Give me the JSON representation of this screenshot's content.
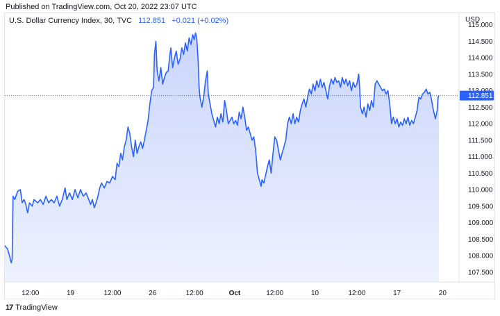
{
  "header": {
    "published": "Published on TradingView.com, Oct 20, 2022 23:07 UTC"
  },
  "legend": {
    "symbol": "U.S. Dollar Currency Index, 30, TVC",
    "last": "112.851",
    "change": "+0.021 (+0.02%)"
  },
  "footer": {
    "brand": "TradingView",
    "logo": "17"
  },
  "colors": {
    "line": "#2962ff",
    "area_top": "#c9d5fb",
    "area_bottom": "#eef2fe",
    "price_label_bg": "#2962ff"
  },
  "chart_data": {
    "type": "area",
    "currency_label": "USD",
    "current_price_label": "112.851",
    "current_price": 112.851,
    "ylim": [
      107.2,
      115.35
    ],
    "y_ticks": [
      "115.000",
      "114.500",
      "114.000",
      "113.500",
      "113.000",
      "112.500",
      "112.000",
      "111.500",
      "111.000",
      "110.500",
      "110.000",
      "109.500",
      "109.000",
      "108.500",
      "108.000",
      "107.500"
    ],
    "x_ticks": [
      {
        "label": "12:00",
        "x": 0.8,
        "bold": false
      },
      {
        "label": "19",
        "x": 3.0,
        "bold": false
      },
      {
        "label": "12:00",
        "x": 5.3,
        "bold": false
      },
      {
        "label": "26",
        "x": 7.5,
        "bold": false
      },
      {
        "label": "12:00",
        "x": 9.8,
        "bold": false
      },
      {
        "label": "Oct",
        "x": 12.0,
        "bold": true
      },
      {
        "label": "12:00",
        "x": 14.2,
        "bold": false
      },
      {
        "label": "10",
        "x": 16.4,
        "bold": false
      },
      {
        "label": "12:00",
        "x": 18.7,
        "bold": false
      },
      {
        "label": "17",
        "x": 20.9,
        "bold": false
      },
      {
        "label": "20",
        "x": 23.4,
        "bold": false
      }
    ],
    "xlim": [
      -0.6,
      24.3
    ],
    "series": [
      {
        "points": [
          [
            -0.6,
            108.3
          ],
          [
            -0.45,
            108.2
          ],
          [
            -0.35,
            108.0
          ],
          [
            -0.25,
            107.78
          ],
          [
            -0.2,
            107.9
          ],
          [
            -0.15,
            109.8
          ],
          [
            -0.05,
            109.7
          ],
          [
            0.1,
            109.95
          ],
          [
            0.25,
            110.0
          ],
          [
            0.35,
            109.6
          ],
          [
            0.45,
            109.7
          ],
          [
            0.55,
            109.55
          ],
          [
            0.65,
            109.3
          ],
          [
            0.75,
            109.6
          ],
          [
            0.9,
            109.5
          ],
          [
            1.0,
            109.7
          ],
          [
            1.2,
            109.6
          ],
          [
            1.35,
            109.7
          ],
          [
            1.5,
            109.55
          ],
          [
            1.65,
            109.8
          ],
          [
            1.8,
            109.6
          ],
          [
            1.95,
            109.7
          ],
          [
            2.1,
            109.6
          ],
          [
            2.25,
            109.8
          ],
          [
            2.4,
            109.5
          ],
          [
            2.55,
            109.7
          ],
          [
            2.7,
            110.05
          ],
          [
            2.8,
            109.7
          ],
          [
            2.95,
            109.9
          ],
          [
            3.1,
            109.7
          ],
          [
            3.25,
            110.0
          ],
          [
            3.4,
            109.75
          ],
          [
            3.55,
            110.0
          ],
          [
            3.7,
            109.8
          ],
          [
            3.85,
            109.9
          ],
          [
            4.0,
            109.7
          ],
          [
            4.1,
            109.55
          ],
          [
            4.2,
            109.7
          ],
          [
            4.3,
            109.45
          ],
          [
            4.4,
            109.6
          ],
          [
            4.5,
            109.8
          ],
          [
            4.6,
            110.05
          ],
          [
            4.7,
            110.2
          ],
          [
            4.85,
            110.05
          ],
          [
            5.0,
            110.25
          ],
          [
            5.15,
            110.2
          ],
          [
            5.3,
            110.4
          ],
          [
            5.45,
            110.3
          ],
          [
            5.55,
            110.8
          ],
          [
            5.65,
            110.7
          ],
          [
            5.75,
            111.1
          ],
          [
            5.85,
            110.9
          ],
          [
            5.95,
            111.3
          ],
          [
            6.05,
            111.5
          ],
          [
            6.15,
            111.9
          ],
          [
            6.25,
            111.7
          ],
          [
            6.35,
            111.3
          ],
          [
            6.45,
            111.0
          ],
          [
            6.55,
            111.5
          ],
          [
            6.65,
            111.1
          ],
          [
            6.75,
            111.3
          ],
          [
            6.85,
            111.45
          ],
          [
            6.95,
            111.25
          ],
          [
            7.05,
            111.5
          ],
          [
            7.15,
            111.8
          ],
          [
            7.25,
            112.1
          ],
          [
            7.35,
            112.6
          ],
          [
            7.45,
            113.0
          ],
          [
            7.55,
            113.1
          ],
          [
            7.6,
            114.1
          ],
          [
            7.68,
            114.5
          ],
          [
            7.75,
            113.6
          ],
          [
            7.85,
            113.3
          ],
          [
            7.95,
            113.7
          ],
          [
            8.05,
            113.2
          ],
          [
            8.15,
            113.4
          ],
          [
            8.25,
            113.55
          ],
          [
            8.35,
            113.6
          ],
          [
            8.45,
            114.1
          ],
          [
            8.5,
            114.3
          ],
          [
            8.6,
            113.7
          ],
          [
            8.7,
            114.0
          ],
          [
            8.8,
            114.2
          ],
          [
            8.9,
            113.8
          ],
          [
            9.0,
            113.95
          ],
          [
            9.1,
            114.3
          ],
          [
            9.2,
            114.1
          ],
          [
            9.3,
            114.45
          ],
          [
            9.4,
            114.2
          ],
          [
            9.5,
            114.6
          ],
          [
            9.6,
            114.4
          ],
          [
            9.7,
            114.7
          ],
          [
            9.78,
            114.55
          ],
          [
            9.85,
            114.75
          ],
          [
            9.92,
            114.6
          ],
          [
            10.0,
            113.9
          ],
          [
            10.05,
            113.1
          ],
          [
            10.1,
            112.8
          ],
          [
            10.2,
            112.5
          ],
          [
            10.3,
            112.8
          ],
          [
            10.4,
            113.3
          ],
          [
            10.5,
            113.6
          ],
          [
            10.55,
            112.9
          ],
          [
            10.65,
            112.6
          ],
          [
            10.75,
            112.3
          ],
          [
            10.85,
            112.1
          ],
          [
            10.95,
            111.9
          ],
          [
            11.05,
            112.2
          ],
          [
            11.15,
            112.0
          ],
          [
            11.25,
            112.3
          ],
          [
            11.35,
            112.05
          ],
          [
            11.45,
            112.7
          ],
          [
            11.55,
            112.4
          ],
          [
            11.65,
            112.0
          ],
          [
            11.75,
            112.1
          ],
          [
            11.85,
            112.2
          ],
          [
            11.95,
            112.0
          ],
          [
            12.05,
            112.1
          ],
          [
            12.15,
            111.95
          ],
          [
            12.25,
            112.35
          ],
          [
            12.35,
            112.15
          ],
          [
            12.45,
            112.5
          ],
          [
            12.55,
            112.2
          ],
          [
            12.65,
            111.8
          ],
          [
            12.75,
            111.9
          ],
          [
            12.85,
            111.7
          ],
          [
            12.95,
            111.5
          ],
          [
            13.05,
            111.6
          ],
          [
            13.15,
            111.2
          ],
          [
            13.25,
            110.5
          ],
          [
            13.35,
            110.3
          ],
          [
            13.45,
            110.1
          ],
          [
            13.5,
            110.3
          ],
          [
            13.6,
            110.2
          ],
          [
            13.7,
            110.45
          ],
          [
            13.8,
            110.7
          ],
          [
            13.9,
            110.9
          ],
          [
            14.0,
            110.5
          ],
          [
            14.1,
            111.1
          ],
          [
            14.2,
            111.6
          ],
          [
            14.3,
            111.5
          ],
          [
            14.4,
            111.2
          ],
          [
            14.5,
            110.9
          ],
          [
            14.6,
            111.1
          ],
          [
            14.7,
            111.3
          ],
          [
            14.8,
            111.5
          ],
          [
            14.9,
            112.0
          ],
          [
            15.0,
            112.2
          ],
          [
            15.1,
            112.0
          ],
          [
            15.2,
            112.3
          ],
          [
            15.3,
            112.0
          ],
          [
            15.4,
            112.2
          ],
          [
            15.5,
            112.05
          ],
          [
            15.6,
            112.4
          ],
          [
            15.7,
            112.6
          ],
          [
            15.8,
            112.75
          ],
          [
            15.9,
            112.5
          ],
          [
            16.0,
            112.8
          ],
          [
            16.1,
            113.05
          ],
          [
            16.2,
            112.9
          ],
          [
            16.3,
            113.2
          ],
          [
            16.4,
            113.0
          ],
          [
            16.5,
            113.3
          ],
          [
            16.6,
            113.1
          ],
          [
            16.7,
            113.35
          ],
          [
            16.8,
            113.1
          ],
          [
            16.9,
            113.25
          ],
          [
            17.0,
            113.0
          ],
          [
            17.1,
            112.75
          ],
          [
            17.2,
            113.15
          ],
          [
            17.3,
            113.35
          ],
          [
            17.4,
            113.2
          ],
          [
            17.5,
            113.4
          ],
          [
            17.6,
            113.25
          ],
          [
            17.7,
            113.3
          ],
          [
            17.8,
            113.1
          ],
          [
            17.9,
            113.4
          ],
          [
            18.0,
            113.2
          ],
          [
            18.1,
            113.35
          ],
          [
            18.2,
            113.15
          ],
          [
            18.3,
            113.3
          ],
          [
            18.4,
            113.0
          ],
          [
            18.5,
            113.25
          ],
          [
            18.6,
            113.1
          ],
          [
            18.7,
            113.2
          ],
          [
            18.8,
            113.5
          ],
          [
            18.85,
            113.1
          ],
          [
            18.9,
            112.5
          ],
          [
            19.0,
            112.3
          ],
          [
            19.1,
            112.5
          ],
          [
            19.2,
            112.2
          ],
          [
            19.3,
            112.6
          ],
          [
            19.4,
            112.4
          ],
          [
            19.5,
            112.7
          ],
          [
            19.6,
            112.5
          ],
          [
            19.7,
            113.2
          ],
          [
            19.8,
            113.3
          ],
          [
            19.9,
            113.2
          ],
          [
            20.0,
            113.1
          ],
          [
            20.1,
            113.0
          ],
          [
            20.2,
            113.05
          ],
          [
            20.3,
            112.9
          ],
          [
            20.4,
            113.0
          ],
          [
            20.5,
            112.6
          ],
          [
            20.6,
            112.0
          ],
          [
            20.7,
            112.2
          ],
          [
            20.8,
            112.0
          ],
          [
            20.9,
            112.15
          ],
          [
            21.0,
            111.9
          ],
          [
            21.1,
            112.05
          ],
          [
            21.2,
            111.95
          ],
          [
            21.3,
            112.15
          ],
          [
            21.4,
            112.0
          ],
          [
            21.5,
            112.2
          ],
          [
            21.6,
            111.95
          ],
          [
            21.7,
            112.1
          ],
          [
            21.8,
            112.0
          ],
          [
            21.9,
            112.2
          ],
          [
            22.0,
            112.4
          ],
          [
            22.1,
            112.8
          ],
          [
            22.2,
            112.75
          ],
          [
            22.3,
            112.9
          ],
          [
            22.4,
            112.95
          ],
          [
            22.5,
            113.05
          ],
          [
            22.6,
            112.9
          ],
          [
            22.7,
            112.95
          ],
          [
            22.8,
            112.7
          ],
          [
            22.9,
            112.4
          ],
          [
            23.0,
            112.15
          ],
          [
            23.1,
            112.4
          ],
          [
            23.15,
            112.8
          ],
          [
            23.2,
            112.85
          ]
        ]
      }
    ]
  }
}
